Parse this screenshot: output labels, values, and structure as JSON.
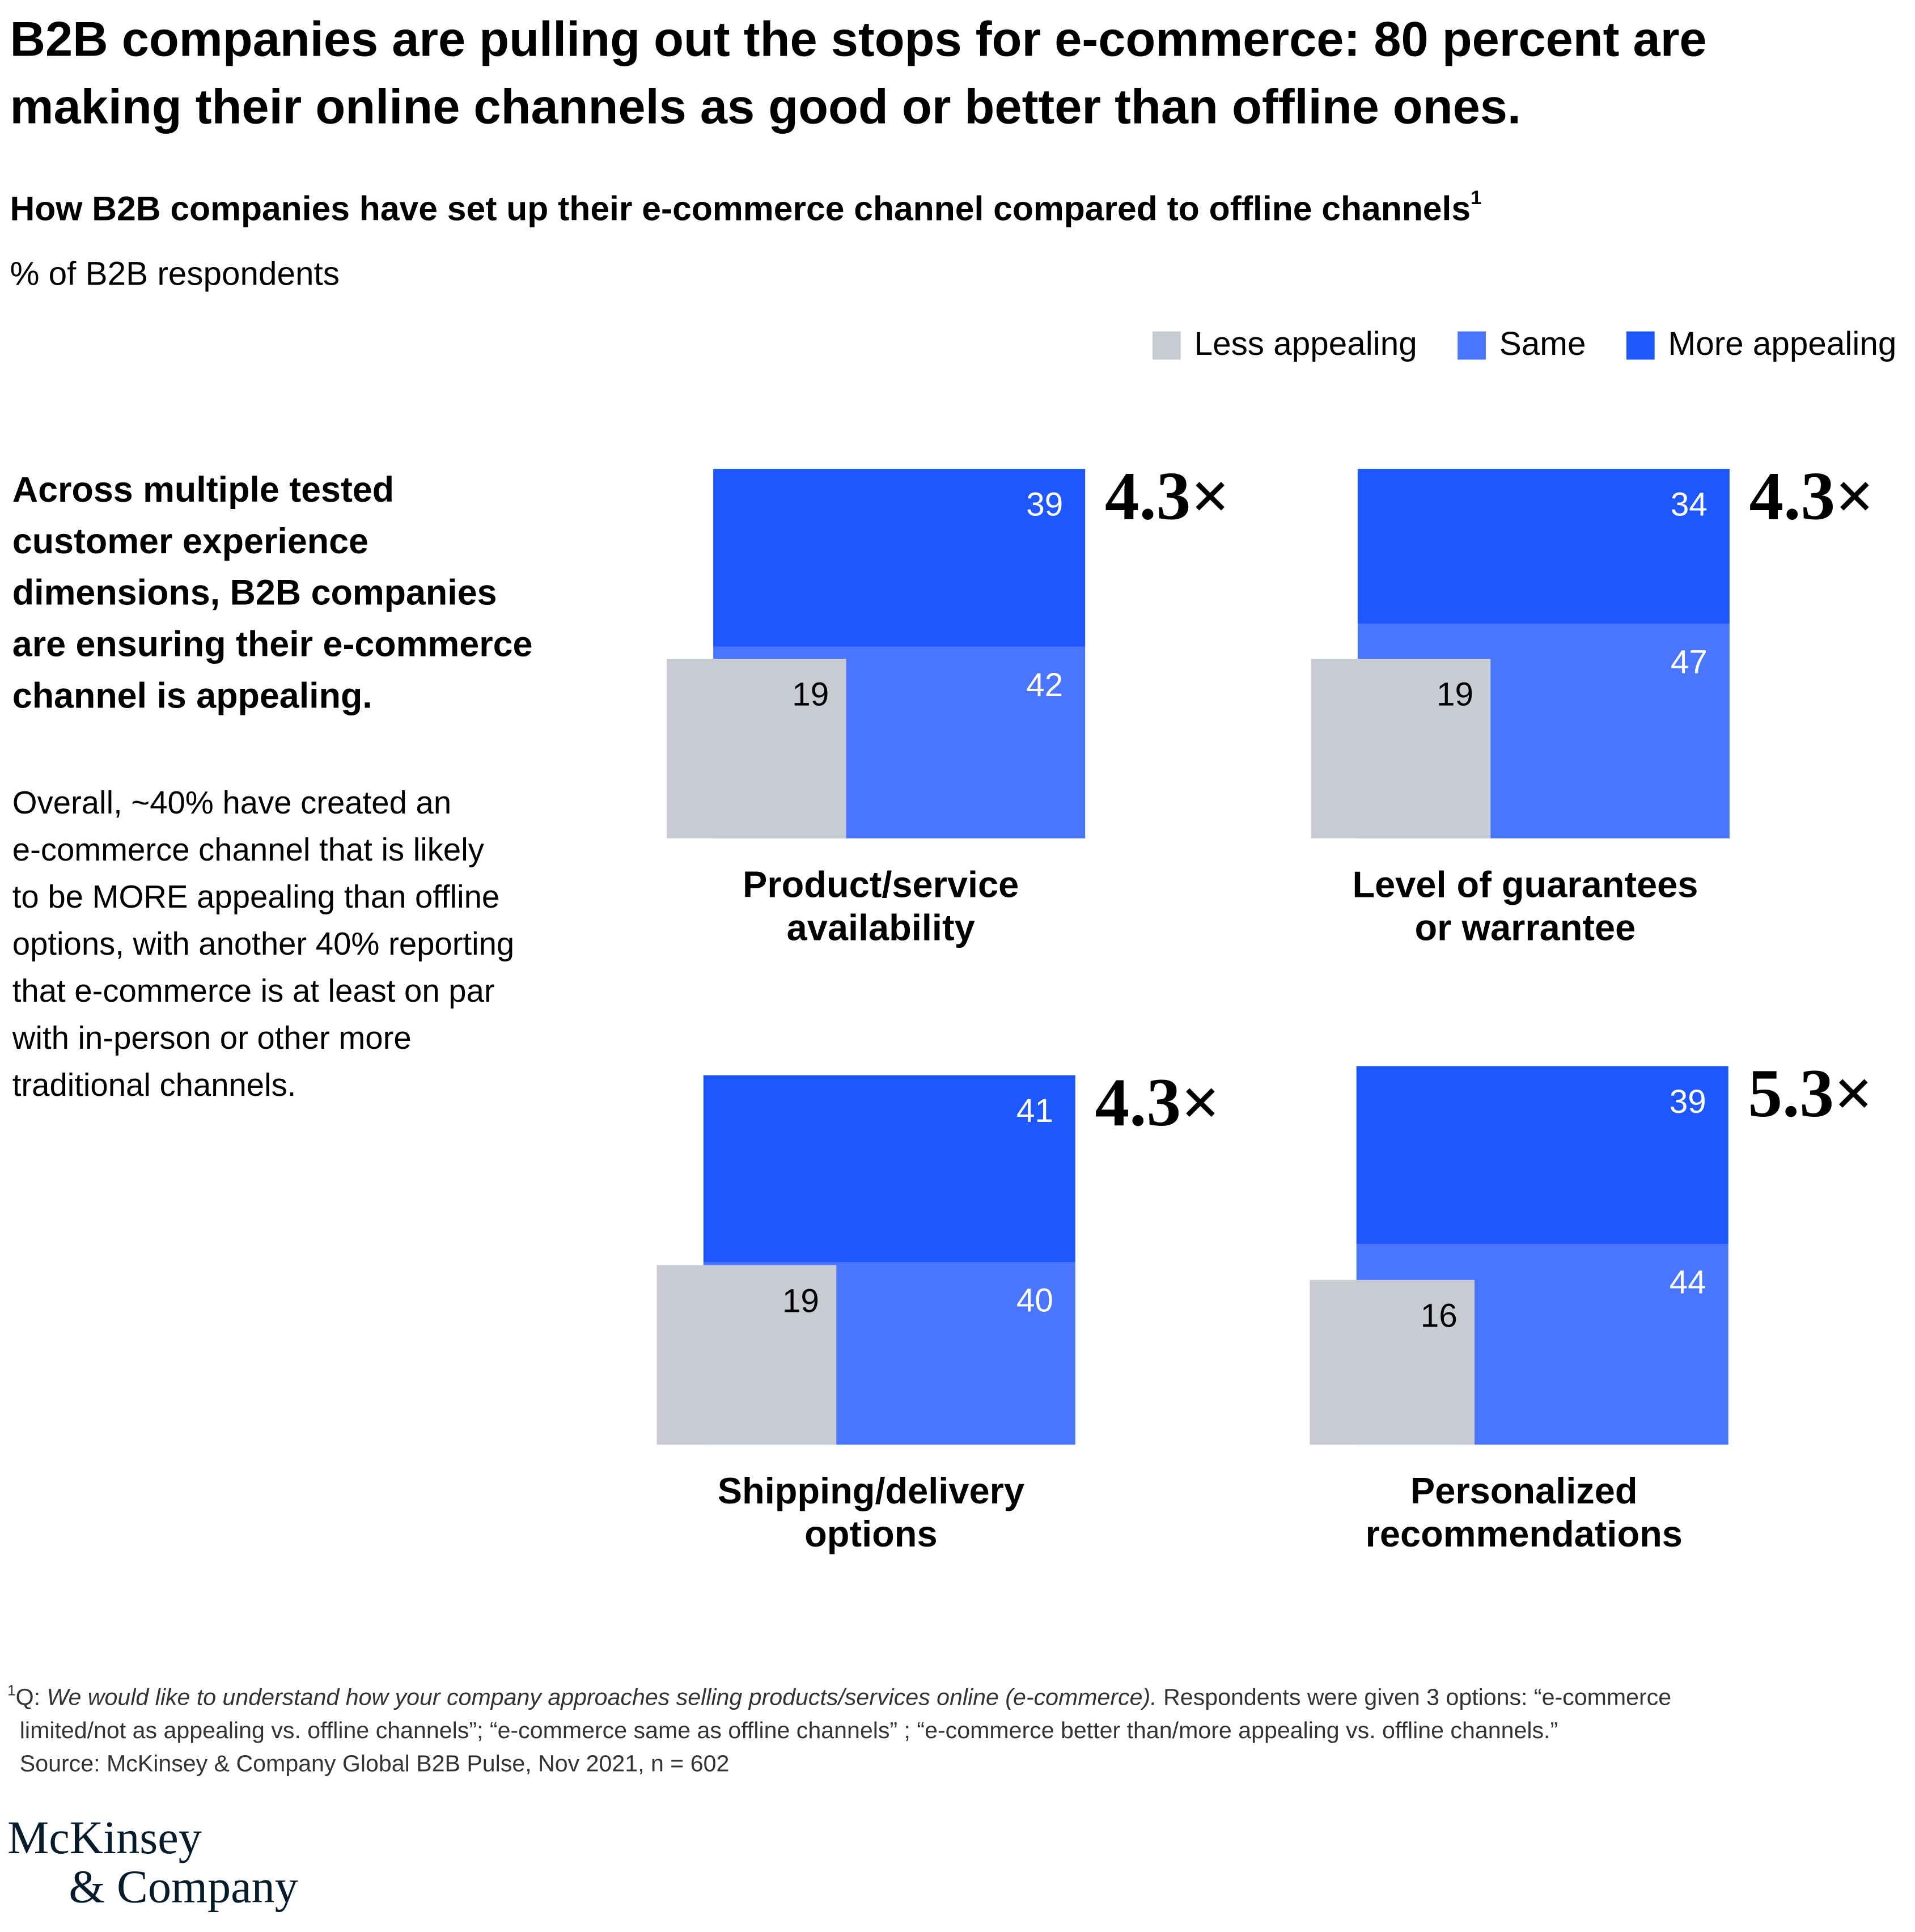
{
  "title_lines": [
    "B2B companies are pulling out the stops for e-commerce: 80 percent are",
    "making their online channels as good or better than offline ones."
  ],
  "subtitle": "How B2B companies have set up their e-commerce channel compared to offline channels",
  "subtitle_note": "1",
  "unit_label": "% of B2B respondents",
  "side_heading_lines": [
    "Across multiple tested",
    "customer experience",
    "dimensions, B2B companies",
    "are ensuring their e-commerce",
    "channel is appealing."
  ],
  "side_body_lines": [
    "Overall, ~40% have created an",
    "e-commerce channel that is likely",
    "to be MORE appealing than offline",
    "options, with another 40% reporting",
    "that e-commerce is at least on par",
    "with in-person or other more",
    "traditional channels."
  ],
  "chart_data": {
    "type": "area-square",
    "categories": [
      [
        "Product/service",
        "availability"
      ],
      [
        "Level of guarantees",
        "or warrantee"
      ],
      [
        "Shipping/delivery",
        "options"
      ],
      [
        "Personalized",
        "recommendations"
      ]
    ],
    "series": [
      {
        "name": "Less appealing",
        "color": "#c9cbd2",
        "values": [
          19,
          19,
          19,
          16
        ]
      },
      {
        "name": "Same",
        "color": "#4a76ff",
        "values": [
          42,
          47,
          40,
          44
        ]
      },
      {
        "name": "More appealing",
        "color": "#1f57ff",
        "values": [
          39,
          34,
          41,
          39
        ]
      }
    ],
    "annotations": [
      "4.3×",
      "4.3×",
      "4.3×",
      "5.3×"
    ],
    "legend": "top-right"
  },
  "footnote": {
    "marker": "1",
    "prefix": "Q: ",
    "question": "We would like to understand how your company approaches selling products/services online (e-commerce).",
    "text_lines": [
      " Respondents were given 3 options: “e-commerce",
      "limited/not as appealing vs. offline channels”; “e-commerce same as offline channels” ; “e-commerce better than/more appealing vs. offline channels.”"
    ],
    "source": "Source: McKinsey & Company Global B2B Pulse, Nov 2021, n = 602"
  },
  "logo_lines": [
    "McKinsey",
    "& Company"
  ]
}
